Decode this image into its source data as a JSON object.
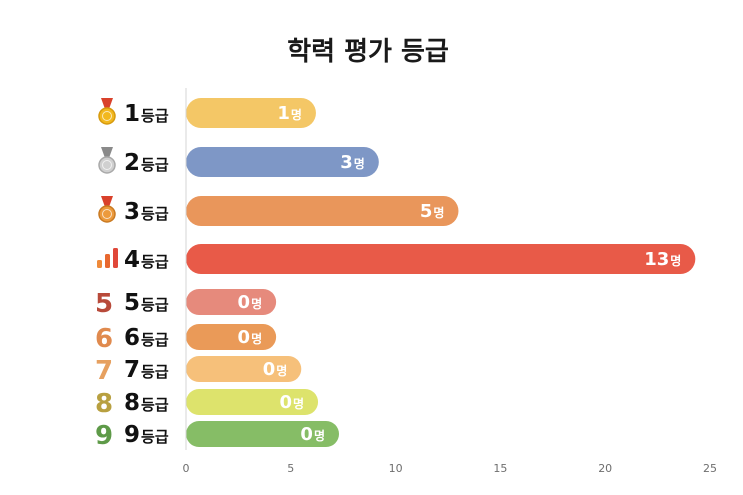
{
  "chart_data": {
    "type": "bar",
    "orientation": "horizontal",
    "title": "학력 평가 등급",
    "xlim": [
      0,
      25
    ],
    "xticks": [
      "0",
      "5",
      "10",
      "15",
      "20",
      "25"
    ],
    "grid": false,
    "bar_label_suffix": "명",
    "categories": [
      {
        "num": "1",
        "suffix": "등급",
        "icon": "gold-medal-icon",
        "value": 1,
        "bar_length": 6.2,
        "label": "1",
        "color": "#f4c766"
      },
      {
        "num": "2",
        "suffix": "등급",
        "icon": "silver-medal-icon",
        "value": 3,
        "bar_length": 9.2,
        "label": "3",
        "color": "#7e97c6"
      },
      {
        "num": "3",
        "suffix": "등급",
        "icon": "bronze-medal-icon",
        "value": 5,
        "bar_length": 13.0,
        "label": "5",
        "color": "#e9965b"
      },
      {
        "num": "4",
        "suffix": "등급",
        "icon": "bar-chart-icon",
        "value": 13,
        "bar_length": 24.3,
        "label": "13",
        "color": "#e85a48"
      },
      {
        "num": "5",
        "suffix": "등급",
        "icon": "numeral-icon",
        "numeral": "5",
        "numeral_color": "#b84a3a",
        "value": 0,
        "bar_length": 4.3,
        "label": "0",
        "color": "#e68a7c"
      },
      {
        "num": "6",
        "suffix": "등급",
        "icon": "numeral-icon",
        "numeral": "6",
        "numeral_color": "#e08a4e",
        "value": 0,
        "bar_length": 4.3,
        "label": "0",
        "color": "#ea9a58"
      },
      {
        "num": "7",
        "suffix": "등급",
        "icon": "numeral-icon",
        "numeral": "7",
        "numeral_color": "#e6a060",
        "value": 0,
        "bar_length": 5.5,
        "label": "0",
        "color": "#f6c07a"
      },
      {
        "num": "8",
        "suffix": "등급",
        "icon": "numeral-icon",
        "numeral": "8",
        "numeral_color": "#b8a040",
        "value": 0,
        "bar_length": 6.3,
        "label": "0",
        "color": "#dde36c"
      },
      {
        "num": "9",
        "suffix": "등급",
        "icon": "numeral-icon",
        "numeral": "9",
        "numeral_color": "#5e9a48",
        "value": 0,
        "bar_length": 7.3,
        "label": "0",
        "color": "#86bd66"
      }
    ]
  }
}
